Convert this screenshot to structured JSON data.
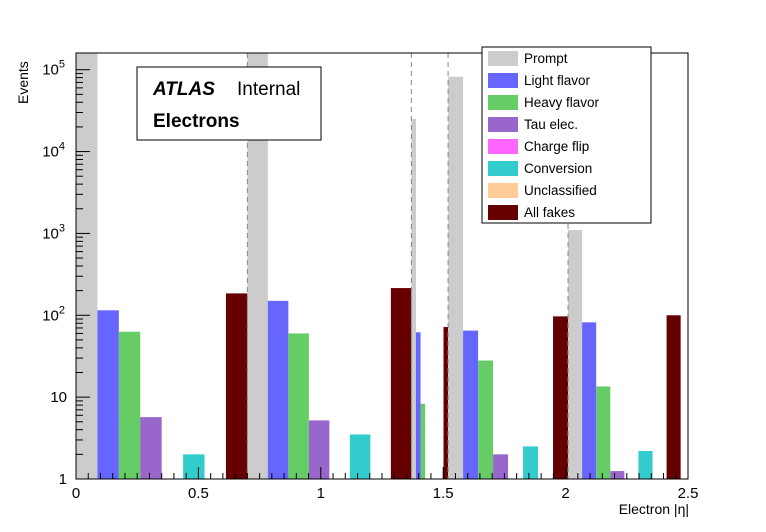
{
  "chart_data": {
    "type": "bar",
    "xlabel": "Electron |η|",
    "ylabel": "Events",
    "xlim": [
      0,
      2.5
    ],
    "ylim": [
      1,
      160000
    ],
    "y_scale": "log",
    "grid": false,
    "legend_position": "top-right",
    "x_ticks": [
      "0",
      "0.5",
      "1",
      "1.5",
      "2",
      "2.5"
    ],
    "y_ticks": [
      "1",
      "10",
      "10^2",
      "10^3",
      "10^4",
      "10^5"
    ],
    "region_boundaries": [
      0.7,
      1.37,
      1.52,
      2.01
    ],
    "bins": [
      [
        0,
        0.7
      ],
      [
        0.7,
        1.37
      ],
      [
        1.37,
        1.52
      ],
      [
        1.52,
        2.01
      ],
      [
        2.01,
        2.47
      ]
    ],
    "series": [
      {
        "name": "Prompt",
        "color": "#cccccc",
        "values": [
          160000,
          160000,
          25000,
          82000,
          1100
        ]
      },
      {
        "name": "Light flavor",
        "color": "#6666ff",
        "values": [
          115,
          150,
          62,
          65,
          82
        ]
      },
      {
        "name": "Heavy flavor",
        "color": "#66cc66",
        "values": [
          63,
          60,
          8.3,
          28,
          13.5
        ]
      },
      {
        "name": "Tau elec.",
        "color": "#9966cc",
        "values": [
          5.7,
          5.2,
          0,
          2.0,
          1.25
        ]
      },
      {
        "name": "Charge flip",
        "color": "#ff66ff",
        "values": [
          0,
          0,
          0,
          0,
          0
        ]
      },
      {
        "name": "Conversion",
        "color": "#33cccc",
        "values": [
          2.0,
          3.5,
          0,
          2.5,
          2.2
        ]
      },
      {
        "name": "Unclassified",
        "color": "#ffcc99",
        "values": [
          0,
          0,
          0,
          0,
          0
        ]
      },
      {
        "name": "All fakes",
        "color": "#660000",
        "values": [
          185,
          215,
          72,
          97,
          100
        ]
      }
    ]
  },
  "annotation": {
    "atlas": "ATLAS",
    "internal": "Internal",
    "subtitle": "Electrons"
  }
}
